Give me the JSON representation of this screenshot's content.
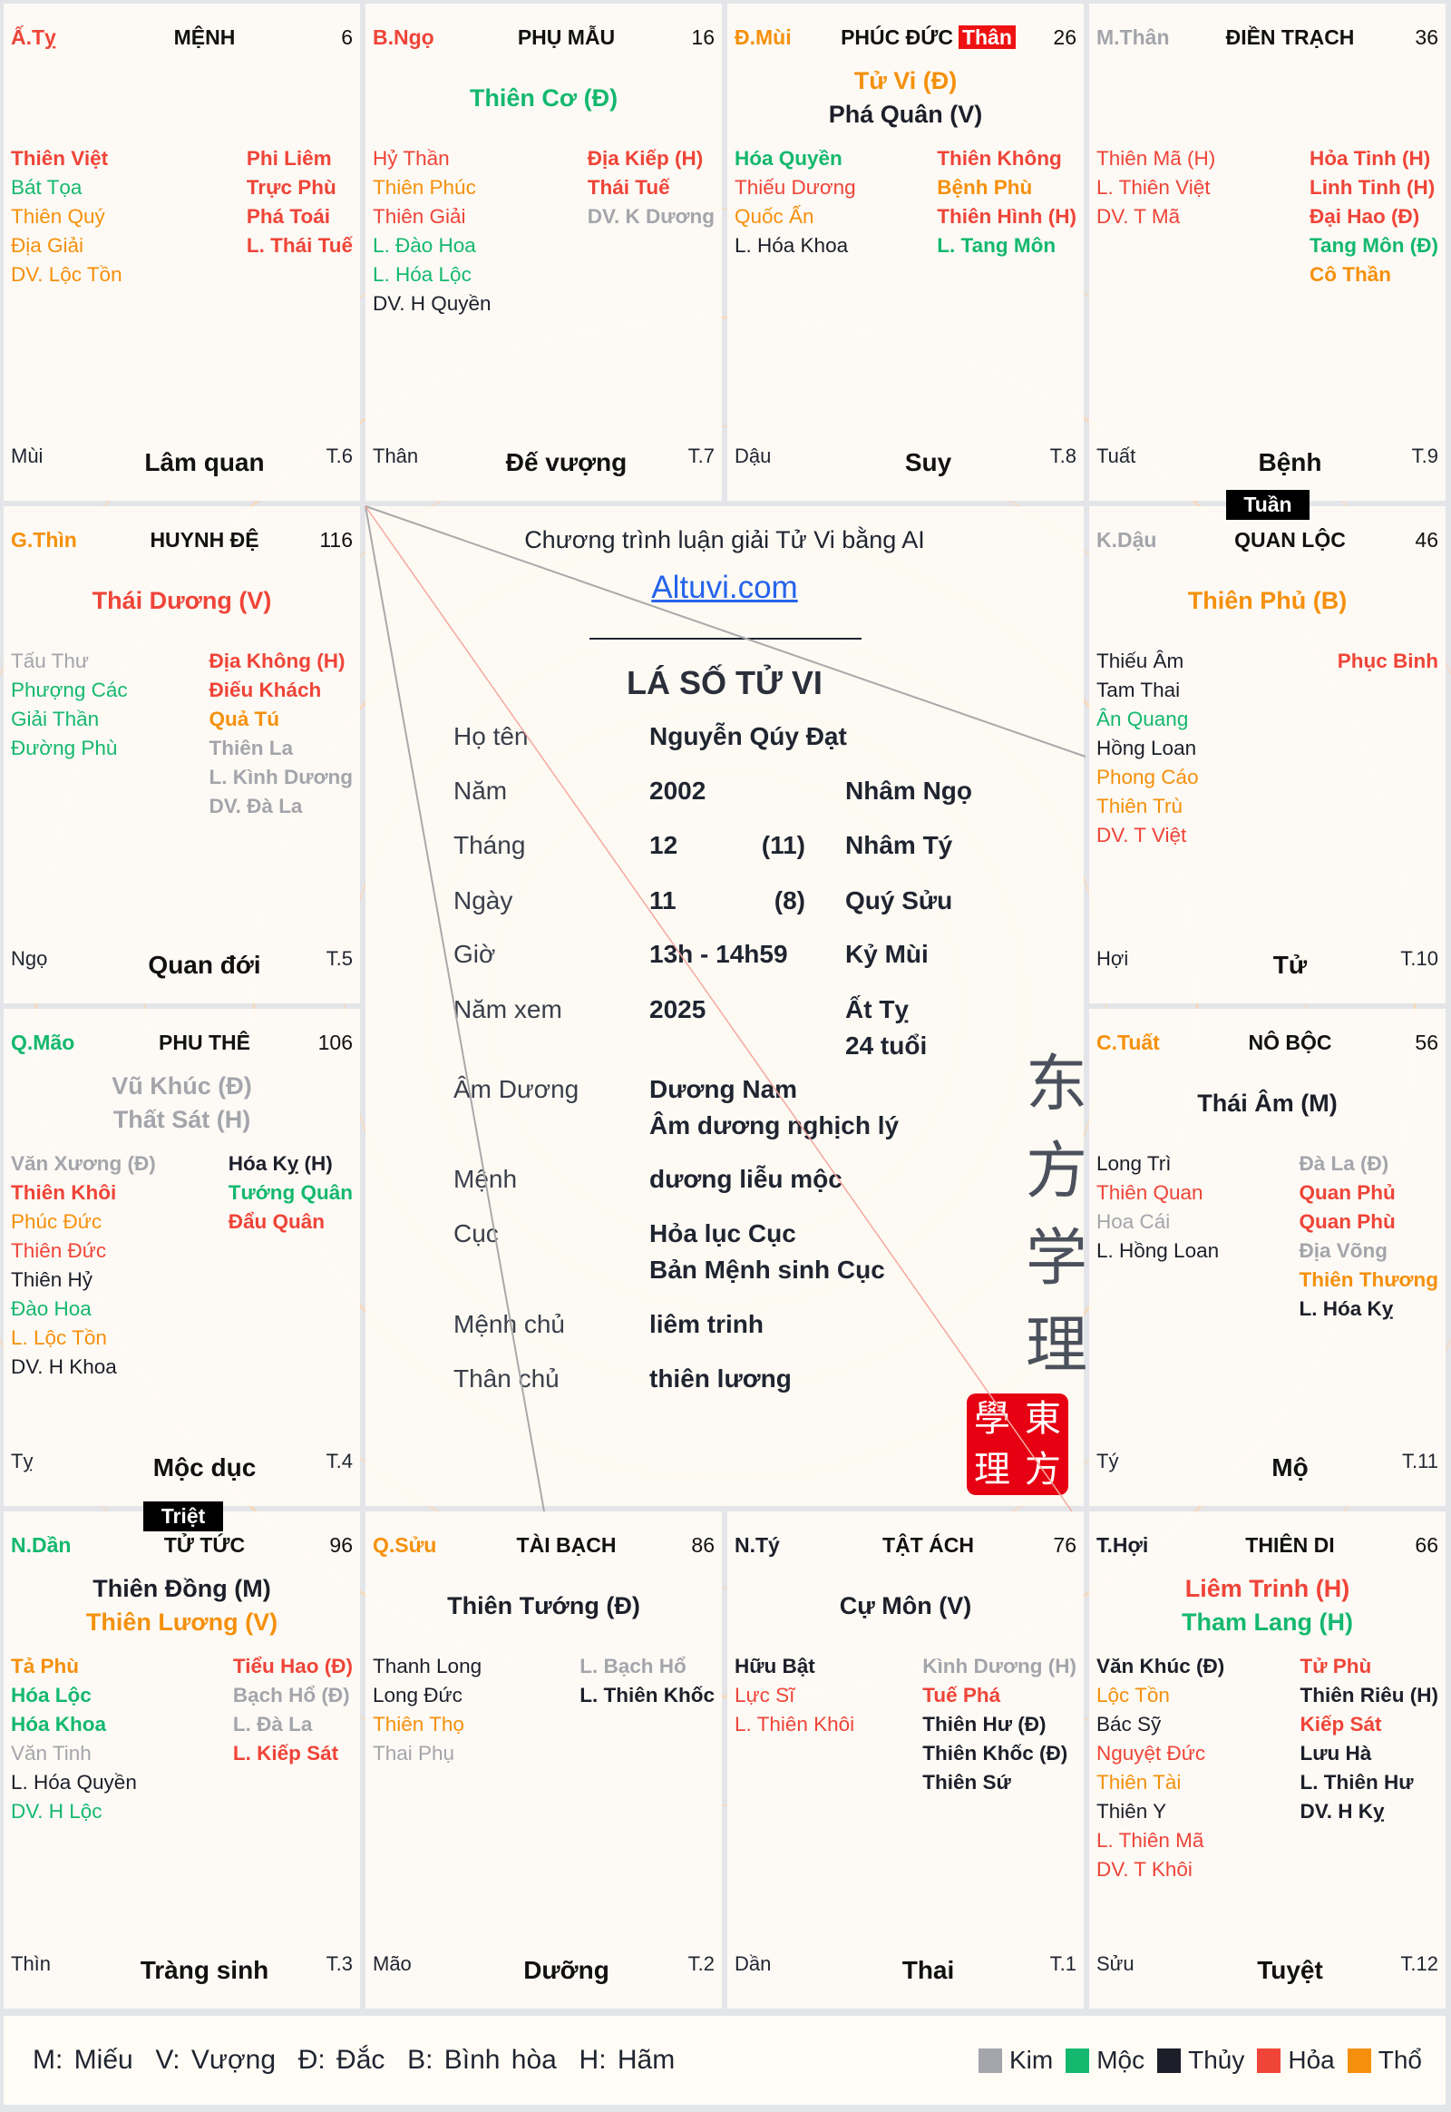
{
  "palaces": [
    {
      "canchi": "Ấ.Tỵ",
      "canchi_color": "h",
      "name": "MỆNH",
      "age": "6",
      "main": [],
      "left": [
        [
          "Thiên Việt",
          "h",
          1
        ],
        [
          "Bát Tọa",
          "m",
          0
        ],
        [
          "Thiên Quý",
          "o",
          0
        ],
        [
          "Địa Giải",
          "o",
          0
        ],
        [
          "DV. Lộc Tồn",
          "o",
          0
        ]
      ],
      "right": [
        [
          "Phi Liêm",
          "h",
          1
        ],
        [
          "Trực Phù",
          "h",
          1
        ],
        [
          "Phá Toái",
          "h",
          1
        ],
        [
          "L. Thái Tuế",
          "h",
          1
        ]
      ],
      "branch": "Mùi",
      "state": "Lâm quan",
      "tx": "T.6"
    },
    {
      "canchi": "B.Ngọ",
      "canchi_color": "h",
      "name": "PHỤ MẪU",
      "age": "16",
      "main": [
        [
          "Thiên Cơ (Đ)",
          "m"
        ]
      ],
      "left": [
        [
          "Hỷ Thần",
          "h",
          0
        ],
        [
          "Thiên Phúc",
          "o",
          0
        ],
        [
          "Thiên Giải",
          "h",
          0
        ],
        [
          "L. Đào Hoa",
          "m",
          0
        ],
        [
          "L. Hóa Lộc",
          "m",
          0
        ],
        [
          "DV. H Quyền",
          "t",
          0
        ]
      ],
      "right": [
        [
          "Địa Kiếp (H)",
          "h",
          1
        ],
        [
          "Thái Tuế",
          "h",
          1
        ],
        [
          "DV. K Dương",
          "k",
          1
        ]
      ],
      "branch": "Thân",
      "state": "Đế vượng",
      "tx": "T.7"
    },
    {
      "canchi": "Đ.Mùi",
      "canchi_color": "o",
      "name": "PHÚC ĐỨC",
      "than_badge": "Thân",
      "age": "26",
      "main": [
        [
          "Tử Vi (Đ)",
          "o"
        ],
        [
          "Phá Quân (V)",
          "t"
        ]
      ],
      "left": [
        [
          "Hóa Quyền",
          "m",
          1
        ],
        [
          "Thiếu Dương",
          "h",
          0
        ],
        [
          "Quốc Ấn",
          "o",
          0
        ],
        [
          "L. Hóa Khoa",
          "t",
          0
        ]
      ],
      "right": [
        [
          "Thiên Không",
          "h",
          1
        ],
        [
          "Bệnh Phù",
          "o",
          1
        ],
        [
          "Thiên Hình (H)",
          "h",
          1
        ],
        [
          "L. Tang Môn",
          "m",
          1
        ]
      ],
      "branch": "Dậu",
      "state": "Suy",
      "tx": "T.8"
    },
    {
      "canchi": "M.Thân",
      "canchi_color": "k",
      "name": "ĐIỀN TRẠCH",
      "age": "36",
      "main": [],
      "left": [
        [
          "Thiên Mã (H)",
          "h",
          0
        ],
        [
          "L. Thiên Việt",
          "h",
          0
        ],
        [
          "DV. T Mã",
          "h",
          0
        ]
      ],
      "right": [
        [
          "Hỏa Tinh (H)",
          "h",
          1
        ],
        [
          "Linh Tinh (H)",
          "h",
          1
        ],
        [
          "Đại Hao (Đ)",
          "h",
          1
        ],
        [
          "Tang Môn (Đ)",
          "m",
          1
        ],
        [
          "Cô Thần",
          "o",
          1
        ]
      ],
      "branch": "Tuất",
      "state": "Bệnh",
      "tx": "T.9"
    },
    {
      "canchi": "G.Thìn",
      "canchi_color": "o",
      "name": "HUYNH ĐỆ",
      "age": "116",
      "main": [
        [
          "Thái Dương (V)",
          "h"
        ]
      ],
      "left": [
        [
          "Tấu Thư",
          "k",
          0
        ],
        [
          "Phượng Các",
          "m",
          0
        ],
        [
          "Giải Thần",
          "m",
          0
        ],
        [
          "Đường Phù",
          "m",
          0
        ]
      ],
      "right": [
        [
          "Địa Không (H)",
          "h",
          1
        ],
        [
          "Điếu Khách",
          "h",
          1
        ],
        [
          "Quả Tú",
          "o",
          1
        ],
        [
          "Thiên La",
          "k",
          1
        ],
        [
          "L. Kình Dương",
          "k",
          1
        ],
        [
          "DV. Đà La",
          "k",
          1
        ]
      ],
      "branch": "Ngọ",
      "state": "Quan đới",
      "tx": "T.5"
    },
    {
      "canchi": "K.Dậu",
      "canchi_color": "k",
      "name": "QUAN LỘC",
      "age": "46",
      "main": [
        [
          "Thiên Phủ (B)",
          "o"
        ]
      ],
      "left": [
        [
          "Thiếu Âm",
          "t",
          0
        ],
        [
          "Tam Thai",
          "t",
          0
        ],
        [
          "Ân Quang",
          "m",
          0
        ],
        [
          "Hồng Loan",
          "t",
          0
        ],
        [
          "Phong Cáo",
          "o",
          0
        ],
        [
          "Thiên Trù",
          "o",
          0
        ],
        [
          "DV. T Việt",
          "h",
          0
        ]
      ],
      "right": [
        [
          "Phục Binh",
          "h",
          1
        ]
      ],
      "branch": "Hợi",
      "state": "Tử",
      "tx": "T.10"
    },
    {
      "canchi": "Q.Mão",
      "canchi_color": "m",
      "name": "PHU THÊ",
      "age": "106",
      "main": [
        [
          "Vũ Khúc (Đ)",
          "k"
        ],
        [
          "Thất Sát (H)",
          "k"
        ]
      ],
      "left": [
        [
          "Văn Xương (Đ)",
          "k",
          1
        ],
        [
          "Thiên Khôi",
          "h",
          1
        ],
        [
          "Phúc Đức",
          "o",
          0
        ],
        [
          "Thiên Đức",
          "h",
          0
        ],
        [
          "Thiên Hỷ",
          "t",
          0
        ],
        [
          "Đào Hoa",
          "m",
          0
        ],
        [
          "L. Lộc Tồn",
          "o",
          0
        ],
        [
          "DV. H Khoa",
          "t",
          0
        ]
      ],
      "right": [
        [
          "Hóa Kỵ (H)",
          "t",
          1
        ],
        [
          "Tướng Quân",
          "m",
          1
        ],
        [
          "Đẩu Quân",
          "h",
          1
        ]
      ],
      "branch": "Tỵ",
      "state": "Mộc dục",
      "tx": "T.4"
    },
    {
      "canchi": "C.Tuất",
      "canchi_color": "o",
      "name": "NÔ BỘC",
      "age": "56",
      "main": [
        [
          "Thái Âm (M)",
          "t"
        ]
      ],
      "left": [
        [
          "Long Trì",
          "t",
          0
        ],
        [
          "Thiên Quan",
          "h",
          0
        ],
        [
          "Hoa Cái",
          "k",
          0
        ],
        [
          "L. Hồng Loan",
          "t",
          0
        ]
      ],
      "right": [
        [
          "Đà La (Đ)",
          "k",
          1
        ],
        [
          "Quan Phủ",
          "h",
          1
        ],
        [
          "Quan Phù",
          "h",
          1
        ],
        [
          "Địa Võng",
          "k",
          1
        ],
        [
          "Thiên Thương",
          "o",
          1
        ],
        [
          "L. Hóa Kỵ",
          "t",
          1
        ]
      ],
      "branch": "Tý",
      "state": "Mộ",
      "tx": "T.11"
    },
    {
      "canchi": "N.Dần",
      "canchi_color": "m",
      "name": "TỬ TỨC",
      "age": "96",
      "main": [
        [
          "Thiên Đồng (M)",
          "t"
        ],
        [
          "Thiên Lương (V)",
          "o"
        ]
      ],
      "left": [
        [
          "Tả Phù",
          "o",
          1
        ],
        [
          "Hóa Lộc",
          "m",
          1
        ],
        [
          "Hóa Khoa",
          "m",
          1
        ],
        [
          "Văn Tinh",
          "k",
          0
        ],
        [
          "L. Hóa Quyền",
          "t",
          0
        ],
        [
          "DV. H Lộc",
          "m",
          0
        ]
      ],
      "right": [
        [
          "Tiểu Hao (Đ)",
          "h",
          1
        ],
        [
          "Bạch Hổ (Đ)",
          "k",
          1
        ],
        [
          "L. Đà La",
          "k",
          1
        ],
        [
          "L. Kiếp Sát",
          "h",
          1
        ]
      ],
      "branch": "Thìn",
      "state": "Tràng sinh",
      "tx": "T.3"
    },
    {
      "canchi": "Q.Sửu",
      "canchi_color": "o",
      "name": "TÀI BẠCH",
      "age": "86",
      "main": [
        [
          "Thiên Tướng (Đ)",
          "t"
        ]
      ],
      "left": [
        [
          "Thanh Long",
          "t",
          0
        ],
        [
          "Long Đức",
          "t",
          0
        ],
        [
          "Thiên Thọ",
          "o",
          0
        ],
        [
          "Thai Phụ",
          "k",
          0
        ]
      ],
      "right": [
        [
          "L. Bạch Hổ",
          "k",
          1
        ],
        [
          "L. Thiên Khốc",
          "t",
          1
        ]
      ],
      "branch": "Mão",
      "state": "Dưỡng",
      "tx": "T.2"
    },
    {
      "canchi": "N.Tý",
      "canchi_color": "t",
      "name": "TẬT ÁCH",
      "age": "76",
      "main": [
        [
          "Cự Môn (V)",
          "t"
        ]
      ],
      "left": [
        [
          "Hữu Bật",
          "t",
          1
        ],
        [
          "Lực Sĩ",
          "h",
          0
        ],
        [
          "L. Thiên Khôi",
          "h",
          0
        ]
      ],
      "right": [
        [
          "Kình Dương (H)",
          "k",
          1
        ],
        [
          "Tuế Phá",
          "h",
          1
        ],
        [
          "Thiên Hư (Đ)",
          "t",
          1
        ],
        [
          "Thiên Khốc (Đ)",
          "t",
          1
        ],
        [
          "Thiên Sứ",
          "t",
          1
        ]
      ],
      "branch": "Dần",
      "state": "Thai",
      "tx": "T.1"
    },
    {
      "canchi": "T.Hợi",
      "canchi_color": "t",
      "name": "THIÊN DI",
      "age": "66",
      "main": [
        [
          "Liêm Trinh (H)",
          "h"
        ],
        [
          "Tham Lang (H)",
          "m"
        ]
      ],
      "left": [
        [
          "Văn Khúc (Đ)",
          "t",
          1
        ],
        [
          "Lộc Tồn",
          "o",
          0
        ],
        [
          "Bác Sỹ",
          "t",
          0
        ],
        [
          "Nguyệt Đức",
          "h",
          0
        ],
        [
          "Thiên Tài",
          "o",
          0
        ],
        [
          "Thiên Y",
          "t",
          0
        ],
        [
          "L. Thiên Mã",
          "h",
          0
        ],
        [
          "DV. T Khôi",
          "h",
          0
        ]
      ],
      "right": [
        [
          "Tử Phù",
          "h",
          1
        ],
        [
          "Thiên Riêu (H)",
          "t",
          1
        ],
        [
          "Kiếp Sát",
          "h",
          1
        ],
        [
          "Lưu Hà",
          "t",
          1
        ],
        [
          "L. Thiên Hư",
          "t",
          1
        ],
        [
          "DV. H Kỵ",
          "t",
          1
        ]
      ],
      "branch": "Sửu",
      "state": "Tuyệt",
      "tx": "T.12"
    }
  ],
  "badges": {
    "tuan": "Tuần",
    "triet": "Triệt"
  },
  "center": {
    "subtitle": "Chương trình luận giải Tử Vi bằng AI",
    "link": "Altuvi.com",
    "title": "LÁ SỐ TỬ VI",
    "rows": [
      {
        "label": "Họ tên",
        "value": "Nguyễn Qúy Đạt",
        "mid": "",
        "extra": ""
      },
      {
        "label": "Năm",
        "value": "2002",
        "mid": "",
        "extra": "Nhâm Ngọ"
      },
      {
        "label": "Tháng",
        "value": "12",
        "mid": "(11)",
        "extra": "Nhâm Tý"
      },
      {
        "label": "Ngày",
        "value": "11",
        "mid": "(8)",
        "extra": "Quý Sửu"
      },
      {
        "label": "Giờ",
        "value": "13h - 14h59",
        "mid": "",
        "extra": "Kỷ Mùi"
      },
      {
        "label": "Năm xem",
        "value": "2025",
        "mid": "",
        "extra": "Ất Tỵ",
        "extra2": "24 tuổi"
      },
      {
        "label": "Âm Dương",
        "value": "Dương Nam",
        "value2": "Âm dương nghịch lý"
      },
      {
        "label": "Mệnh",
        "value": "dương liễu mộc"
      },
      {
        "label": "Cục",
        "value": "Hỏa lục Cục",
        "value2": "Bản Mệnh sinh Cục"
      },
      {
        "label": "Mệnh chủ",
        "value": "liêm trinh"
      },
      {
        "label": "Thân chủ",
        "value": "thiên lương"
      }
    ],
    "calligraphy": [
      "东",
      "方",
      "学",
      "理"
    ],
    "seal": [
      "學",
      "東",
      "理",
      "方"
    ]
  },
  "footer": {
    "legend_text": "M: Miếu  V: Vượng  Đ: Đắc  B: Bình hòa  H: Hãm",
    "elements": [
      {
        "label": "Kim",
        "color": "#a3a5ab"
      },
      {
        "label": "Mộc",
        "color": "#14b86e"
      },
      {
        "label": "Thủy",
        "color": "#1c1f29"
      },
      {
        "label": "Hỏa",
        "color": "#ef4438"
      },
      {
        "label": "Thổ",
        "color": "#f5900c"
      }
    ]
  },
  "colors": {
    "k": "#a3a5ab",
    "m": "#14b86e",
    "t": "#1c1f29",
    "h": "#ef4438",
    "o": "#f5900c",
    "link": "#2563eb",
    "than_badge": "#ee1111"
  }
}
